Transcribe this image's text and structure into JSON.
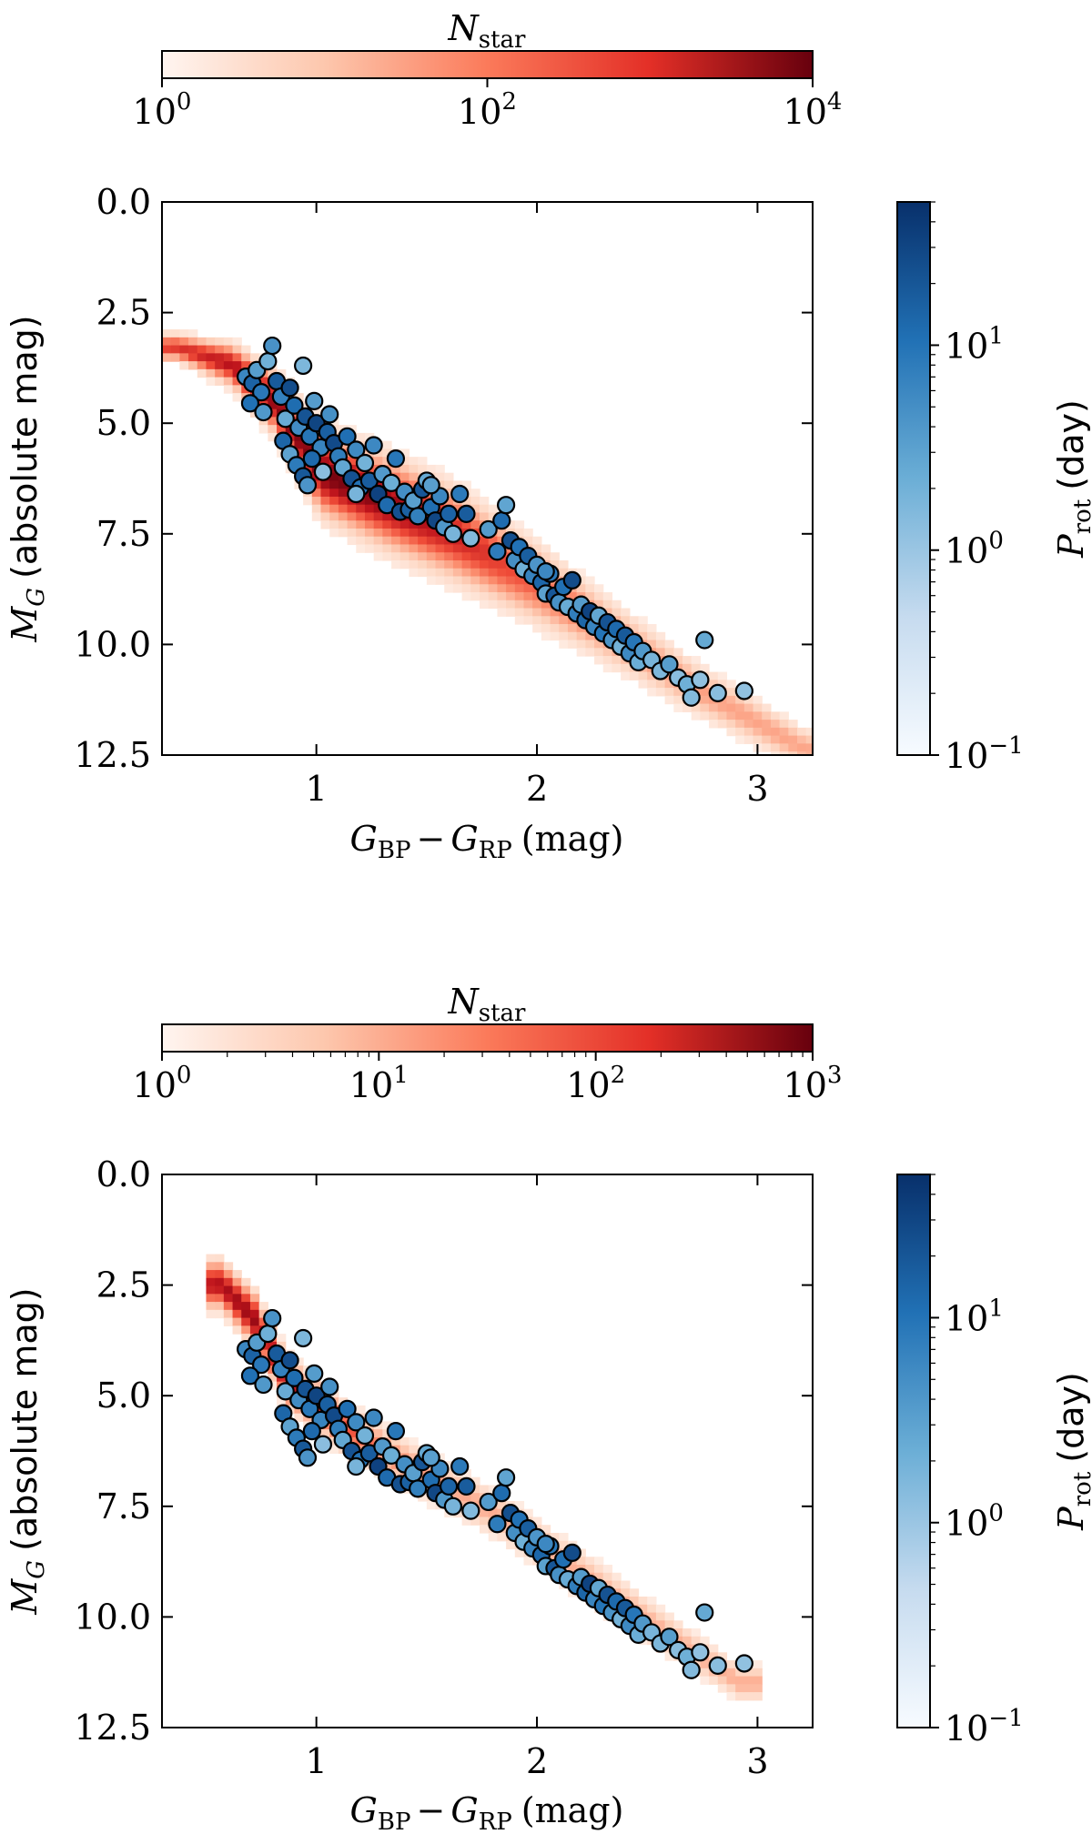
{
  "chart_data": [
    {
      "type": "scatter",
      "panel": "top",
      "title": "",
      "xlabel_main": "G",
      "xlabel_sub1": "BP",
      "xlabel_minus": "−",
      "xlabel_sub2": "RP",
      "xlabel_unit": "(mag)",
      "ylabel_main": "M",
      "ylabel_sub": "G",
      "ylabel_unit": "(absolute mag)",
      "xlim": [
        0.3,
        3.25
      ],
      "ylim": [
        12.5,
        0.0
      ],
      "xticks": [
        1,
        2,
        3
      ],
      "yticks": [
        0.0,
        2.5,
        5.0,
        7.5,
        10.0,
        12.5
      ],
      "xtick_labels": [
        "1",
        "2",
        "3"
      ],
      "ytick_labels": [
        "0.0",
        "2.5",
        "5.0",
        "7.5",
        "10.0",
        "12.5"
      ],
      "background_density": {
        "colormap": "Reds",
        "colorbar_label_main": "N",
        "colorbar_label_sub": "star",
        "scale": "log",
        "range": [
          1,
          10000
        ],
        "tick_labels": [
          {
            "base": "10",
            "exp": "0"
          },
          {
            "base": "10",
            "exp": "2"
          },
          {
            "base": "10",
            "exp": "4"
          }
        ],
        "ridge": [
          {
            "x": 0.35,
            "y": 3.2,
            "w": 0.45
          },
          {
            "x": 0.6,
            "y": 3.6,
            "w": 0.7
          },
          {
            "x": 0.8,
            "y": 4.5,
            "w": 1.0
          },
          {
            "x": 1.0,
            "y": 6.0,
            "w": 1.4
          },
          {
            "x": 1.3,
            "y": 6.7,
            "w": 1.5
          },
          {
            "x": 1.6,
            "y": 7.4,
            "w": 1.5
          },
          {
            "x": 2.0,
            "y": 8.6,
            "w": 1.3
          },
          {
            "x": 2.3,
            "y": 9.6,
            "w": 1.1
          },
          {
            "x": 2.7,
            "y": 10.9,
            "w": 0.9
          },
          {
            "x": 3.2,
            "y": 12.3,
            "w": 0.7
          }
        ],
        "peak_density": 7000
      },
      "points_colorbar": {
        "colormap": "Blues",
        "label_main": "P",
        "label_sub": "rot",
        "label_unit": "(day)",
        "scale": "log",
        "range": [
          0.1,
          50
        ],
        "tick_labels": [
          {
            "base": "10",
            "exp": "−1"
          },
          {
            "base": "10",
            "exp": "0"
          },
          {
            "base": "10",
            "exp": "1"
          }
        ]
      }
    },
    {
      "type": "scatter",
      "panel": "bottom",
      "title": "",
      "xlabel_main": "G",
      "xlabel_sub1": "BP",
      "xlabel_minus": "−",
      "xlabel_sub2": "RP",
      "xlabel_unit": "(mag)",
      "ylabel_main": "M",
      "ylabel_sub": "G",
      "ylabel_unit": "(absolute mag)",
      "xlim": [
        0.3,
        3.25
      ],
      "ylim": [
        12.5,
        0.0
      ],
      "xticks": [
        1,
        2,
        3
      ],
      "yticks": [
        0.0,
        2.5,
        5.0,
        7.5,
        10.0,
        12.5
      ],
      "xtick_labels": [
        "1",
        "2",
        "3"
      ],
      "ytick_labels": [
        "0.0",
        "2.5",
        "5.0",
        "7.5",
        "10.0",
        "12.5"
      ],
      "background_density": {
        "colormap": "Reds",
        "colorbar_label_main": "N",
        "colorbar_label_sub": "star",
        "scale": "log",
        "range": [
          1,
          1000
        ],
        "tick_labels": [
          {
            "base": "10",
            "exp": "0"
          },
          {
            "base": "10",
            "exp": "1"
          },
          {
            "base": "10",
            "exp": "2"
          },
          {
            "base": "10",
            "exp": "3"
          }
        ],
        "ridge": [
          {
            "x": 0.55,
            "y": 2.4,
            "w": 0.8
          },
          {
            "x": 0.7,
            "y": 3.2,
            "w": 0.9
          },
          {
            "x": 0.85,
            "y": 4.6,
            "w": 0.8
          },
          {
            "x": 1.1,
            "y": 5.6,
            "w": 0.8
          },
          {
            "x": 1.4,
            "y": 6.5,
            "w": 0.8
          },
          {
            "x": 1.8,
            "y": 7.6,
            "w": 0.8
          },
          {
            "x": 2.2,
            "y": 9.0,
            "w": 0.8
          },
          {
            "x": 2.6,
            "y": 10.4,
            "w": 0.7
          },
          {
            "x": 2.9,
            "y": 11.4,
            "w": 0.6
          }
        ],
        "peak_density": 450
      },
      "points_colorbar": {
        "colormap": "Blues",
        "label_main": "P",
        "label_sub": "rot",
        "label_unit": "(day)",
        "scale": "log",
        "range": [
          0.1,
          50
        ],
        "tick_labels": [
          {
            "base": "10",
            "exp": "−1"
          },
          {
            "base": "10",
            "exp": "0"
          },
          {
            "base": "10",
            "exp": "1"
          }
        ]
      }
    }
  ],
  "stars": {
    "fields": [
      "bp_rp",
      "abs_g",
      "prot_day"
    ],
    "rows": [
      [
        0.68,
        3.95,
        4.2
      ],
      [
        0.71,
        4.1,
        12.0
      ],
      [
        0.73,
        3.8,
        2.1
      ],
      [
        0.75,
        4.3,
        6.5
      ],
      [
        0.78,
        3.6,
        1.2
      ],
      [
        0.8,
        3.25,
        3.0
      ],
      [
        0.7,
        4.55,
        8.0
      ],
      [
        0.76,
        4.75,
        2.5
      ],
      [
        0.82,
        4.05,
        15.0
      ],
      [
        0.84,
        4.4,
        5.0
      ],
      [
        0.86,
        4.9,
        1.4
      ],
      [
        0.88,
        4.2,
        22.0
      ],
      [
        0.9,
        4.6,
        9.0
      ],
      [
        0.92,
        5.1,
        3.6
      ],
      [
        0.94,
        3.7,
        0.9
      ],
      [
        0.95,
        4.85,
        18.0
      ],
      [
        0.97,
        5.3,
        7.0
      ],
      [
        0.99,
        4.5,
        2.2
      ],
      [
        1.0,
        5.0,
        28.0
      ],
      [
        1.02,
        5.55,
        4.5
      ],
      [
        0.85,
        5.4,
        11.0
      ],
      [
        0.88,
        5.7,
        1.8
      ],
      [
        0.91,
        5.95,
        6.0
      ],
      [
        0.94,
        6.2,
        16.0
      ],
      [
        0.96,
        6.4,
        2.8
      ],
      [
        0.98,
        5.8,
        10.0
      ],
      [
        1.03,
        6.1,
        0.7
      ],
      [
        1.05,
        5.2,
        13.0
      ],
      [
        1.06,
        4.8,
        3.2
      ],
      [
        1.08,
        5.45,
        24.0
      ],
      [
        1.1,
        5.75,
        5.5
      ],
      [
        1.12,
        6.0,
        1.6
      ],
      [
        1.14,
        5.3,
        8.5
      ],
      [
        1.16,
        6.25,
        19.0
      ],
      [
        1.18,
        5.6,
        3.8
      ],
      [
        1.2,
        6.45,
        7.5
      ],
      [
        1.22,
        5.9,
        1.1
      ],
      [
        1.24,
        6.3,
        14.0
      ],
      [
        1.26,
        5.5,
        4.0
      ],
      [
        1.28,
        6.6,
        30.0
      ],
      [
        1.3,
        6.15,
        2.4
      ],
      [
        1.32,
        6.85,
        9.5
      ],
      [
        1.34,
        6.35,
        1.3
      ],
      [
        1.36,
        5.8,
        6.8
      ],
      [
        1.38,
        7.0,
        20.0
      ],
      [
        1.4,
        6.55,
        3.4
      ],
      [
        1.42,
        6.95,
        12.5
      ],
      [
        1.44,
        6.75,
        2.0
      ],
      [
        1.46,
        7.1,
        5.2
      ],
      [
        1.48,
        6.5,
        17.0
      ],
      [
        1.5,
        6.3,
        1.5
      ],
      [
        1.52,
        6.9,
        8.8
      ],
      [
        1.54,
        7.2,
        26.0
      ],
      [
        1.56,
        6.65,
        4.1
      ],
      [
        1.58,
        7.35,
        2.6
      ],
      [
        1.6,
        7.05,
        11.5
      ],
      [
        1.62,
        7.5,
        1.0
      ],
      [
        1.65,
        6.6,
        6.2
      ],
      [
        1.68,
        7.05,
        14.5
      ],
      [
        1.7,
        7.6,
        0.8
      ],
      [
        1.78,
        7.4,
        2.3
      ],
      [
        1.82,
        7.9,
        5.8
      ],
      [
        1.84,
        7.2,
        9.2
      ],
      [
        1.86,
        6.85,
        1.7
      ],
      [
        1.88,
        7.65,
        21.0
      ],
      [
        1.9,
        8.1,
        3.3
      ],
      [
        1.92,
        7.8,
        7.8
      ],
      [
        1.94,
        8.3,
        1.2
      ],
      [
        1.96,
        8.0,
        13.5
      ],
      [
        1.98,
        8.45,
        4.7
      ],
      [
        2.0,
        8.2,
        2.7
      ],
      [
        2.02,
        8.6,
        10.5
      ],
      [
        2.04,
        8.85,
        1.9
      ],
      [
        2.06,
        8.4,
        6.6
      ],
      [
        2.08,
        8.9,
        16.5
      ],
      [
        2.1,
        9.05,
        3.1
      ],
      [
        2.12,
        8.7,
        8.2
      ],
      [
        2.14,
        9.15,
        1.4
      ],
      [
        2.16,
        8.55,
        23.0
      ],
      [
        2.18,
        9.3,
        5.4
      ],
      [
        2.2,
        9.1,
        2.2
      ],
      [
        2.22,
        9.45,
        11.0
      ],
      [
        2.24,
        9.25,
        29.0
      ],
      [
        2.26,
        9.6,
        4.4
      ],
      [
        2.28,
        9.35,
        1.6
      ],
      [
        2.3,
        9.75,
        7.2
      ],
      [
        2.32,
        9.5,
        18.5
      ],
      [
        2.34,
        9.9,
        2.9
      ],
      [
        2.36,
        9.65,
        9.8
      ],
      [
        2.38,
        10.05,
        1.1
      ],
      [
        2.4,
        9.8,
        15.5
      ],
      [
        2.42,
        10.2,
        3.9
      ],
      [
        2.44,
        9.95,
        6.9
      ],
      [
        2.46,
        10.4,
        1.3
      ],
      [
        2.48,
        10.15,
        2.5
      ],
      [
        2.52,
        10.35,
        1.0
      ],
      [
        2.56,
        10.6,
        0.9
      ],
      [
        2.6,
        10.45,
        2.1
      ],
      [
        2.64,
        10.75,
        0.7
      ],
      [
        2.68,
        10.9,
        1.2
      ],
      [
        2.7,
        11.2,
        0.8
      ],
      [
        2.74,
        10.8,
        0.6
      ],
      [
        2.76,
        9.9,
        1.5
      ],
      [
        2.82,
        11.1,
        0.7
      ],
      [
        2.94,
        11.05,
        0.6
      ],
      [
        2.04,
        8.35,
        4.0
      ],
      [
        1.52,
        6.4,
        2.0
      ],
      [
        1.18,
        6.6,
        1.0
      ]
    ]
  }
}
